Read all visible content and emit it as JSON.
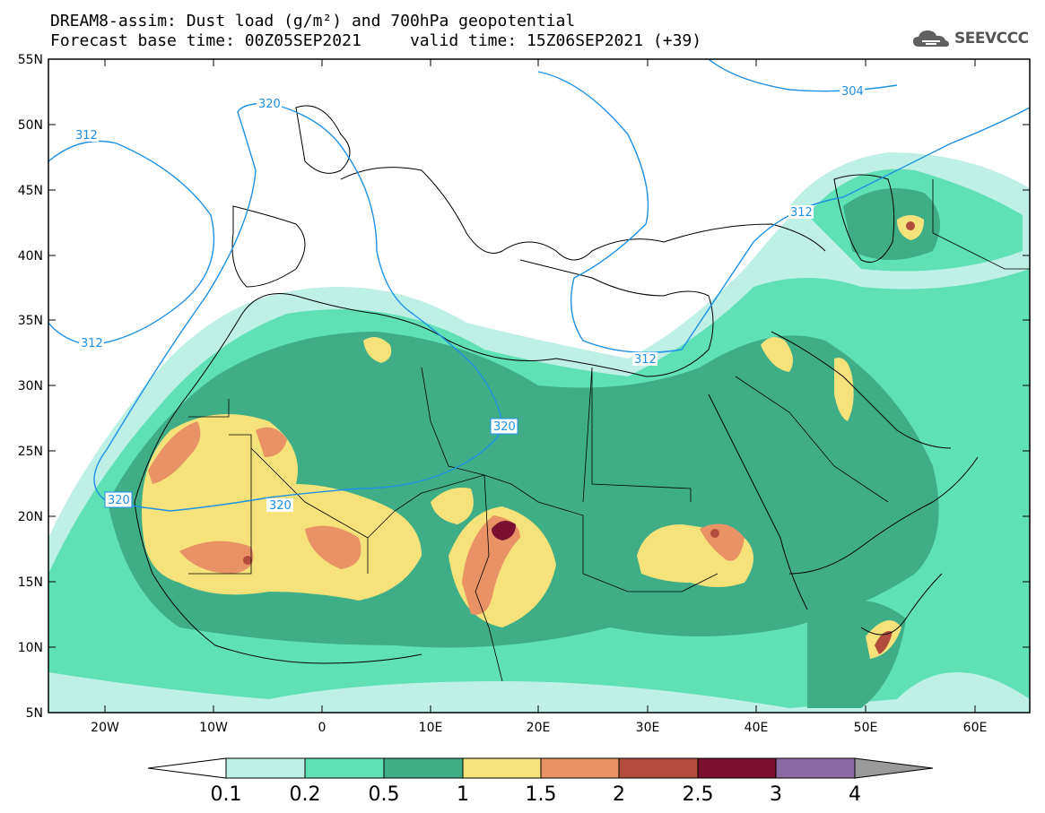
{
  "title_line1": "DREAM8-assim: Dust load (g/m²) and 700hPa geopotential",
  "title_line2": "Forecast base time: 00Z05SEP2021     valid time: 15Z06SEP2021 (+39)",
  "brand": {
    "name": "SEEVCCC",
    "icon": "cloud-icon"
  },
  "lat_ticks": [
    "55N",
    "50N",
    "45N",
    "40N",
    "35N",
    "30N",
    "25N",
    "20N",
    "15N",
    "10N",
    "5N"
  ],
  "lon_ticks": [
    "20W",
    "10W",
    "0",
    "10E",
    "20E",
    "30E",
    "40E",
    "50E",
    "60E"
  ],
  "contour_labels": [
    "304",
    "312",
    "312",
    "320",
    "320",
    "320",
    "320",
    "312",
    "312"
  ],
  "colorbar": {
    "labels": [
      "0.1",
      "0.2",
      "0.5",
      "1",
      "1.5",
      "2",
      "2.5",
      "3",
      "4"
    ],
    "colors": [
      "#bff0e6",
      "#5fe0b5",
      "#3fae86",
      "#f5e27a",
      "#e89266",
      "#b24c3d",
      "#7a1030",
      "#8a6aa0",
      "#9a9a9a"
    ]
  },
  "colors": {
    "contour": "#1e90e6",
    "coast": "#000000",
    "light": "#bff0e6",
    "mid": "#5fe0b5",
    "dark": "#3fae86",
    "yellow": "#f5e27a",
    "orange": "#e89266",
    "red": "#b24c3d",
    "maroon": "#7a1030"
  }
}
